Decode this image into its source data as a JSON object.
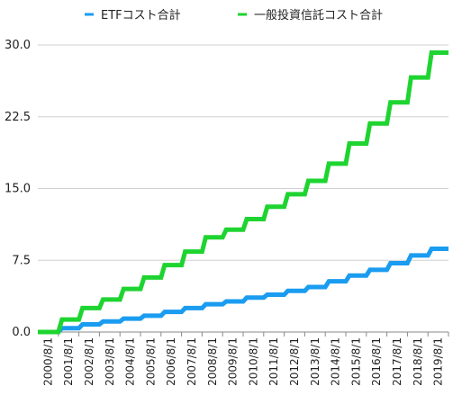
{
  "chart_data": {
    "type": "line",
    "title": "",
    "xlabel": "",
    "ylabel": "",
    "legend_position": "top",
    "grid": true,
    "ylim": [
      0,
      30
    ],
    "yticks": [
      "0.0",
      "7.5",
      "15.0",
      "22.5",
      "30.0"
    ],
    "categories": [
      "2000/8/1",
      "2001/8/1",
      "2002/8/1",
      "2003/8/1",
      "2004/8/1",
      "2005/8/1",
      "2006/8/1",
      "2007/8/1",
      "2008/8/1",
      "2009/8/1",
      "2010/8/1",
      "2011/8/1",
      "2012/8/1",
      "2013/8/1",
      "2014/8/1",
      "2015/8/1",
      "2016/8/1",
      "2017/8/1",
      "2018/8/1",
      "2019/8/1"
    ],
    "series": [
      {
        "name": "ETFコスト合計",
        "color": "#1a9cf0",
        "values": [
          0.0,
          0.4,
          0.8,
          1.1,
          1.4,
          1.7,
          2.1,
          2.5,
          2.9,
          3.2,
          3.6,
          3.9,
          4.3,
          4.7,
          5.3,
          5.9,
          6.5,
          7.2,
          8.0,
          8.7
        ]
      },
      {
        "name": "一般投資信託コスト合計",
        "color": "#1ed430",
        "values": [
          0.0,
          1.3,
          2.5,
          3.4,
          4.5,
          5.7,
          7.0,
          8.4,
          9.9,
          10.7,
          11.8,
          13.1,
          14.4,
          15.8,
          17.6,
          19.7,
          21.8,
          24.0,
          26.6,
          29.2
        ]
      }
    ]
  }
}
